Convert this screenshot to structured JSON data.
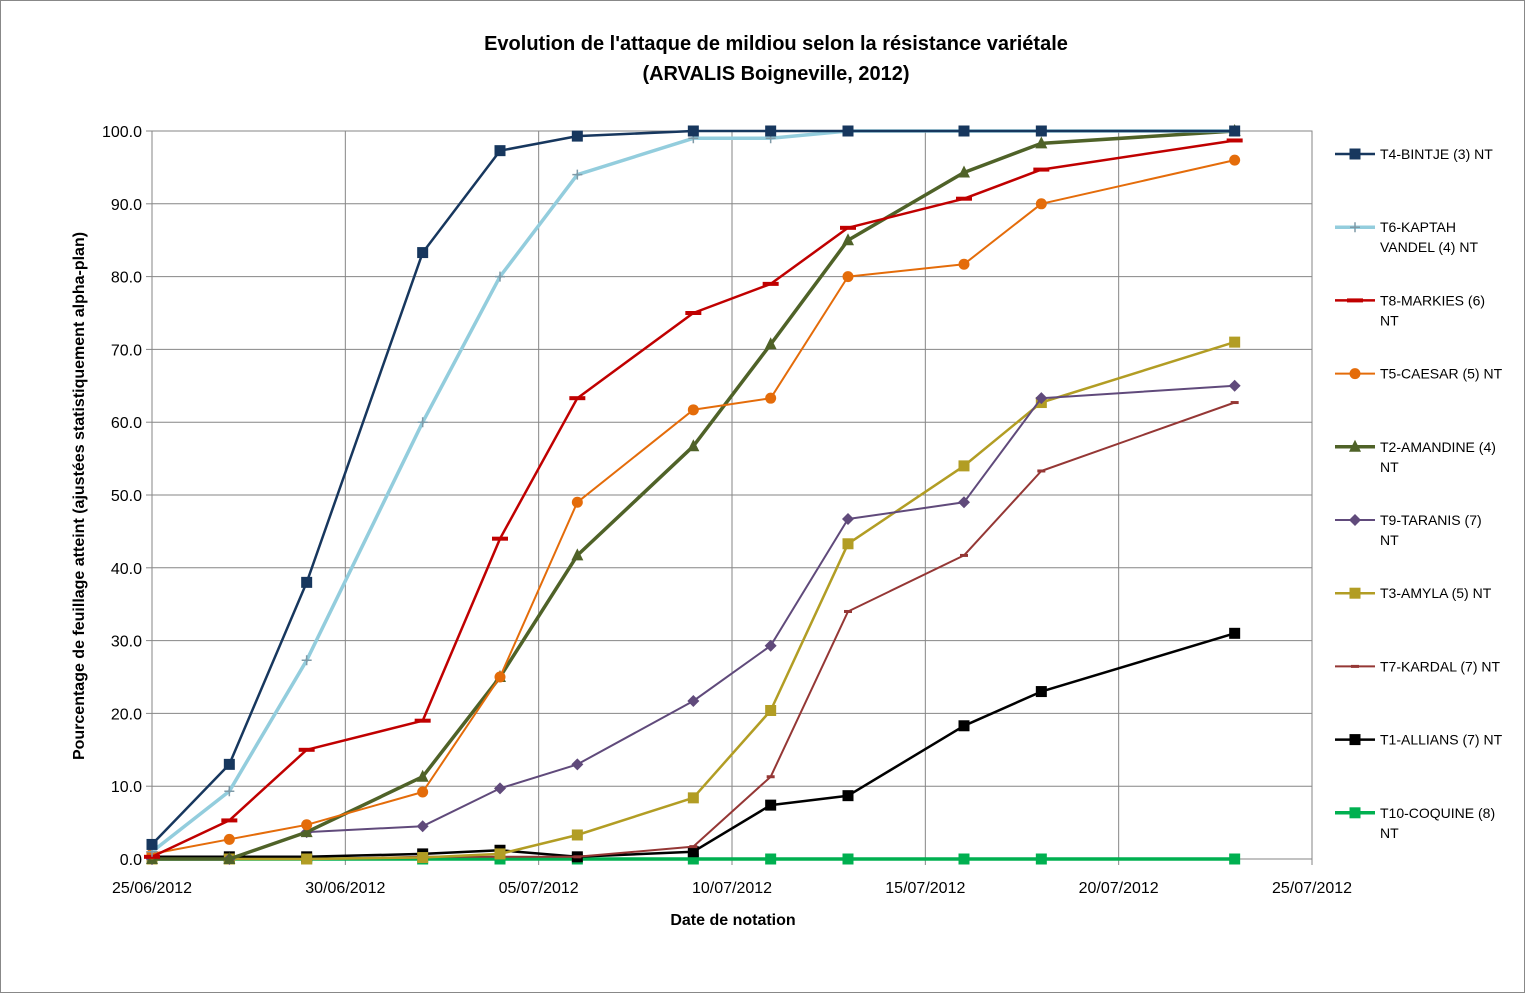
{
  "chart_data": {
    "type": "line",
    "title": "Evolution de l'attaque de  mildiou selon la résistance variétale",
    "subtitle": "(ARVALIS Boigneville, 2012)",
    "xlabel": "Date de notation",
    "ylabel": "Pourcentage de feuillage atteint (ajustées statistiquement alpha-plan)",
    "x_axis": {
      "type": "date",
      "min": "2012-06-25",
      "max": "2012-07-25",
      "ticks": [
        "25/06/2012",
        "30/06/2012",
        "05/07/2012",
        "10/07/2012",
        "15/07/2012",
        "20/07/2012",
        "25/07/2012"
      ]
    },
    "y_axis": {
      "min": 0,
      "max": 100,
      "ticks": [
        "0.0",
        "10.0",
        "20.0",
        "30.0",
        "40.0",
        "50.0",
        "60.0",
        "70.0",
        "80.0",
        "90.0",
        "100.0"
      ]
    },
    "grid": true,
    "legend_position": "right",
    "x": [
      "2012-06-25",
      "2012-06-27",
      "2012-06-29",
      "2012-07-02",
      "2012-07-04",
      "2012-07-06",
      "2012-07-09",
      "2012-07-11",
      "2012-07-13",
      "2012-07-16",
      "2012-07-18",
      "2012-07-23"
    ],
    "series": [
      {
        "name": "T4-BINTJE (3) NT",
        "legend_lines": [
          "T4-BINTJE (3) NT"
        ],
        "color": "#17375e",
        "marker": "square",
        "width": 2.5,
        "values": [
          2,
          13,
          38,
          83.3,
          97.3,
          99.3,
          100,
          100,
          100,
          100,
          100,
          100
        ]
      },
      {
        "name": "T6-KAPTAH VANDEL (4) NT",
        "legend_lines": [
          "T6-KAPTAH",
          "VANDEL (4) NT"
        ],
        "color": "#93cddd",
        "marker": "plus",
        "width": 3.5,
        "values": [
          1,
          9.3,
          27.3,
          60,
          80,
          94,
          99,
          99,
          100,
          100,
          100,
          100
        ]
      },
      {
        "name": "T8-MARKIES (6) NT",
        "legend_lines": [
          "T8-MARKIES (6)",
          "NT"
        ],
        "color": "#c00000",
        "marker": "dash",
        "width": 2.5,
        "values": [
          0.3,
          5.3,
          15,
          19,
          44,
          63.3,
          75,
          79,
          86.7,
          90.7,
          94.7,
          98.7
        ]
      },
      {
        "name": "T5-CAESAR (5) NT",
        "legend_lines": [
          "T5-CAESAR (5) NT"
        ],
        "color": "#e46c0a",
        "marker": "circle",
        "width": 2,
        "values": [
          0.7,
          2.7,
          4.7,
          9.2,
          25,
          49,
          61.7,
          63.3,
          80,
          81.7,
          90,
          96
        ]
      },
      {
        "name": "T2-AMANDINE (4) NT",
        "legend_lines": [
          "T2-AMANDINE (4)",
          "NT"
        ],
        "color": "#4f6228",
        "marker": "triangle",
        "width": 3.5,
        "values": [
          0,
          0,
          3.7,
          11.3,
          25,
          41.7,
          56.7,
          70.7,
          85,
          94.3,
          98.3,
          100
        ]
      },
      {
        "name": "T9-TARANIS (7) NT",
        "legend_lines": [
          "T9-TARANIS (7)",
          "NT"
        ],
        "color": "#604a7b",
        "marker": "diamond",
        "width": 2,
        "values": [
          0,
          0,
          3.7,
          4.5,
          9.7,
          13,
          21.7,
          29.3,
          46.7,
          49,
          63.3,
          65
        ]
      },
      {
        "name": "T3-AMYLA (5) NT",
        "legend_lines": [
          "T3-AMYLA (5) NT"
        ],
        "color": "#b29d24",
        "marker": "square",
        "width": 2.5,
        "values": [
          0,
          0,
          0,
          0.2,
          0.7,
          3.3,
          8.4,
          20.4,
          43.3,
          54,
          62.7,
          71
        ]
      },
      {
        "name": "T7-KARDAL (7) NT",
        "legend_lines": [
          "T7-KARDAL (7) NT"
        ],
        "color": "#953735",
        "marker": "dash-small",
        "width": 2,
        "values": [
          0,
          0,
          0,
          0.3,
          0.3,
          0.3,
          1.7,
          11.3,
          34,
          41.7,
          53.3,
          62.7
        ]
      },
      {
        "name": "T1-ALLIANS (7) NT",
        "legend_lines": [
          "T1-ALLIANS (7) NT"
        ],
        "color": "#000000",
        "marker": "square",
        "width": 2.5,
        "values": [
          0.3,
          0.3,
          0.3,
          0.7,
          1.2,
          0.3,
          1,
          7.4,
          8.7,
          18.3,
          23,
          31
        ]
      },
      {
        "name": "T10-COQUINE (8) NT",
        "legend_lines": [
          "T10-COQUINE (8)",
          "NT"
        ],
        "color": "#00b050",
        "marker": "square",
        "width": 3.5,
        "values": [
          0,
          0,
          0,
          0,
          0,
          0,
          0,
          0,
          0,
          0,
          0,
          0
        ]
      }
    ]
  }
}
